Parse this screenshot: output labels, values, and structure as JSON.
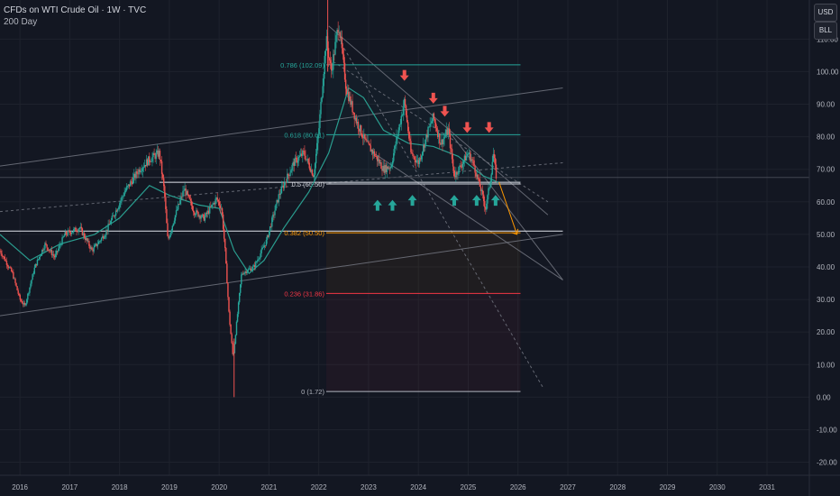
{
  "header": {
    "title": "CFDs on WTI Crude Oil · 1W · TVC",
    "indicator": "200 Day"
  },
  "scale_buttons": {
    "currency": "USD",
    "unit": "BLL"
  },
  "colors": {
    "background": "#131722",
    "bull": "#26a69a",
    "bear": "#ef5350",
    "fib_teal": "#26a69a",
    "fib_red": "#f23645",
    "fib_orange": "#ff9800",
    "ma": "#2a9d8f",
    "channel": "#787b86"
  },
  "chart_data": {
    "type": "candlestick",
    "xlim": [
      2015.6,
      2031.85
    ],
    "ylim": [
      -24,
      122
    ],
    "x_ticks": [
      "2016",
      "2017",
      "2018",
      "2019",
      "2020",
      "2021",
      "2022",
      "2023",
      "2024",
      "2025",
      "2026",
      "2027",
      "2028",
      "2029",
      "2030",
      "2031"
    ],
    "y_ticks": [
      "110.00",
      "100.00",
      "90.00",
      "80.00",
      "70.00",
      "60.00",
      "50.00",
      "40.00",
      "30.00",
      "20.00",
      "10.00",
      "0.00",
      "-10.00",
      "-20.00"
    ],
    "price_path": [
      [
        2015.6,
        45
      ],
      [
        2015.85,
        38
      ],
      [
        2016.0,
        30
      ],
      [
        2016.1,
        28
      ],
      [
        2016.3,
        40
      ],
      [
        2016.5,
        47
      ],
      [
        2016.7,
        43
      ],
      [
        2016.9,
        50
      ],
      [
        2017.2,
        52
      ],
      [
        2017.45,
        45
      ],
      [
        2017.7,
        50
      ],
      [
        2017.95,
        58
      ],
      [
        2018.1,
        63
      ],
      [
        2018.4,
        70
      ],
      [
        2018.6,
        73
      ],
      [
        2018.8,
        75
      ],
      [
        2018.9,
        63
      ],
      [
        2018.97,
        48
      ],
      [
        2019.1,
        55
      ],
      [
        2019.3,
        64
      ],
      [
        2019.5,
        57
      ],
      [
        2019.7,
        55
      ],
      [
        2019.95,
        61
      ],
      [
        2020.05,
        58
      ],
      [
        2020.12,
        45
      ],
      [
        2020.2,
        25
      ],
      [
        2020.28,
        12
      ],
      [
        2020.32,
        18
      ],
      [
        2020.45,
        38
      ],
      [
        2020.7,
        40
      ],
      [
        2020.95,
        48
      ],
      [
        2021.2,
        62
      ],
      [
        2021.5,
        72
      ],
      [
        2021.7,
        75
      ],
      [
        2021.9,
        68
      ],
      [
        2022.0,
        82
      ],
      [
        2022.15,
        110
      ],
      [
        2022.25,
        100
      ],
      [
        2022.4,
        115
      ],
      [
        2022.55,
        95
      ],
      [
        2022.75,
        85
      ],
      [
        2022.95,
        78
      ],
      [
        2023.1,
        75
      ],
      [
        2023.3,
        70
      ],
      [
        2023.45,
        71
      ],
      [
        2023.6,
        82
      ],
      [
        2023.72,
        91
      ],
      [
        2023.85,
        75
      ],
      [
        2024.0,
        72
      ],
      [
        2024.2,
        82
      ],
      [
        2024.3,
        86
      ],
      [
        2024.45,
        78
      ],
      [
        2024.6,
        82
      ],
      [
        2024.72,
        68
      ],
      [
        2024.85,
        71
      ],
      [
        2025.0,
        75
      ],
      [
        2025.1,
        72
      ],
      [
        2025.25,
        64
      ],
      [
        2025.35,
        58
      ],
      [
        2025.45,
        67
      ],
      [
        2025.5,
        75
      ],
      [
        2025.58,
        66
      ]
    ],
    "moving_average": {
      "name": "200 Day",
      "points": [
        [
          2015.6,
          50
        ],
        [
          2016.2,
          42
        ],
        [
          2016.8,
          47
        ],
        [
          2017.5,
          50
        ],
        [
          2018.0,
          55
        ],
        [
          2018.6,
          65
        ],
        [
          2019.0,
          62
        ],
        [
          2019.6,
          59
        ],
        [
          2020.0,
          58
        ],
        [
          2020.3,
          45
        ],
        [
          2020.6,
          38
        ],
        [
          2020.9,
          42
        ],
        [
          2021.3,
          52
        ],
        [
          2021.8,
          63
        ],
        [
          2022.2,
          75
        ],
        [
          2022.6,
          95
        ],
        [
          2022.9,
          92
        ],
        [
          2023.3,
          82
        ],
        [
          2023.8,
          78
        ],
        [
          2024.3,
          77
        ],
        [
          2024.8,
          74
        ],
        [
          2025.3,
          68
        ],
        [
          2025.6,
          66
        ]
      ]
    },
    "fibonacci": {
      "x_range": [
        2022.15,
        2026.05
      ],
      "levels": [
        {
          "ratio": "0.786",
          "price": 102.09,
          "label": "0.786 (102.09)",
          "color": "#26a69a"
        },
        {
          "ratio": "0.618",
          "price": 80.61,
          "label": "0.618 (80.61)",
          "color": "#26a69a"
        },
        {
          "ratio": "0.5",
          "price": 65.5,
          "label": "0.5 (65.50)",
          "color": "#d1d4dc"
        },
        {
          "ratio": "0.382",
          "price": 50.5,
          "label": "0.382 (50.50)",
          "color": "#ff9800"
        },
        {
          "ratio": "0.236",
          "price": 31.86,
          "label": "0.236 (31.86)",
          "color": "#f23645"
        },
        {
          "ratio": "0",
          "price": 1.72,
          "label": "0 (1.72)",
          "color": "#b2b5be"
        }
      ]
    },
    "horizontal_lines": [
      {
        "from": 2018.8,
        "to": 2026.05,
        "price": 66,
        "color": "#e0e3eb"
      },
      {
        "from": 2015.6,
        "to": 2026.9,
        "price": 51,
        "color": "#e0e3eb"
      },
      {
        "from": 2015.6,
        "to": 2031.85,
        "price": 67.5,
        "color": "#434651"
      }
    ],
    "trend_lines": [
      {
        "from": [
          2015.6,
          71
        ],
        "to": [
          2026.9,
          95
        ],
        "color": "#787b86"
      },
      {
        "from": [
          2015.6,
          25
        ],
        "to": [
          2026.9,
          50
        ],
        "color": "#787b86"
      },
      {
        "from": [
          2015.6,
          57
        ],
        "to": [
          2026.9,
          72
        ],
        "color": "#787b86",
        "dash": true
      },
      {
        "from": [
          2022.2,
          114
        ],
        "to": [
          2026.6,
          56
        ],
        "color": "#787b86"
      },
      {
        "from": [
          2022.4,
          110
        ],
        "to": [
          2026.5,
          3
        ],
        "color": "#787b86",
        "dash": true
      },
      {
        "from": [
          2022.2,
          104
        ],
        "to": [
          2026.6,
          60
        ],
        "color": "#787b86",
        "dash": true
      },
      {
        "from": [
          2023.1,
          75
        ],
        "to": [
          2026.9,
          36
        ],
        "color": "#787b86"
      },
      {
        "from": [
          2024.6,
          82
        ],
        "to": [
          2026.9,
          36
        ],
        "color": "#787b86"
      }
    ],
    "projection_arrow": {
      "from": [
        2025.62,
        66
      ],
      "to": [
        2025.98,
        50
      ],
      "color": "#ff9800"
    },
    "down_arrows": [
      {
        "x": 2023.72,
        "y": 98
      },
      {
        "x": 2024.3,
        "y": 91
      },
      {
        "x": 2024.53,
        "y": 87
      },
      {
        "x": 2024.98,
        "y": 82
      },
      {
        "x": 2025.42,
        "y": 82
      }
    ],
    "up_arrows": [
      {
        "x": 2023.18,
        "y": 59.5
      },
      {
        "x": 2023.48,
        "y": 59.5
      },
      {
        "x": 2023.88,
        "y": 61
      },
      {
        "x": 2024.72,
        "y": 61
      },
      {
        "x": 2025.17,
        "y": 61
      },
      {
        "x": 2025.55,
        "y": 61
      }
    ]
  }
}
